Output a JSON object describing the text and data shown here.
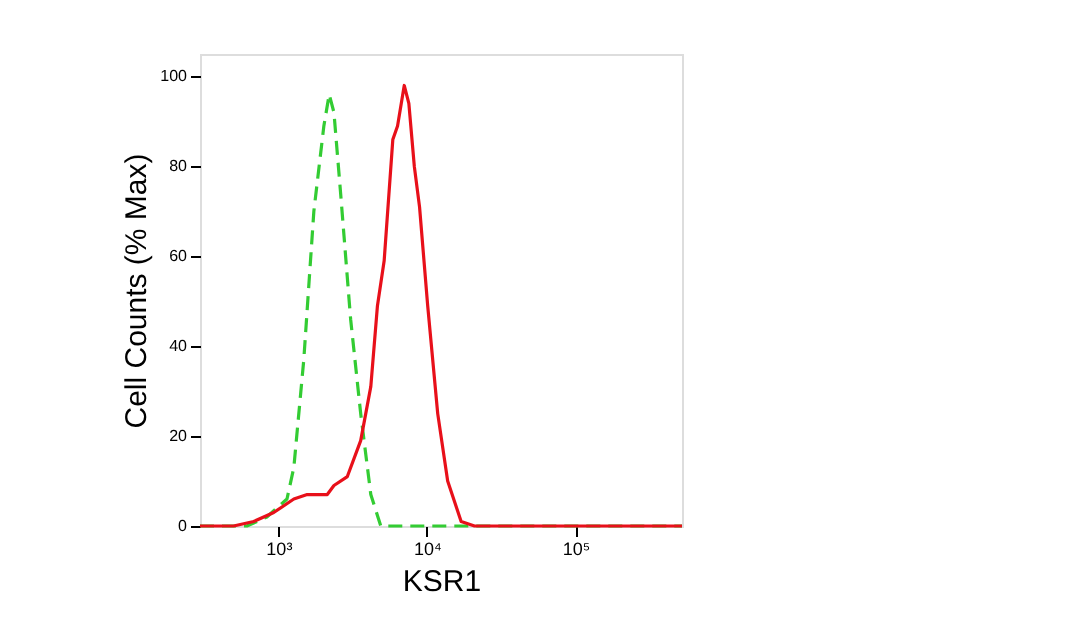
{
  "chart_data": {
    "type": "line",
    "xlabel": "KSR1",
    "ylabel": "Cell Counts (% Max)",
    "log": "x",
    "grid": false,
    "marker": "none",
    "xlim": [
      297,
      520000
    ],
    "ylim": [
      0,
      105
    ],
    "xticks": [
      {
        "value": 1000,
        "label": "10³"
      },
      {
        "value": 10000,
        "label": "10⁴"
      },
      {
        "value": 100000,
        "label": "10⁵"
      }
    ],
    "yticks": [
      0,
      20,
      40,
      60,
      80,
      100
    ],
    "series": [
      {
        "color": "#33cc33",
        "line_style": "dashed",
        "x": [
          297,
          614,
          837,
          1143,
          1271,
          1483,
          1733,
          2024,
          2198,
          2366,
          2624,
          3064,
          3581,
          4188,
          4887,
          20890,
          520000
        ],
        "values": [
          0,
          0,
          2,
          6,
          13,
          37,
          70,
          89,
          96,
          92,
          74,
          46,
          25,
          7,
          0,
          0,
          0
        ]
      },
      {
        "color": "#e8101a",
        "line_style": "solid",
        "x": [
          297,
          500,
          682,
          931,
          1271,
          1563,
          2134,
          2366,
          2912,
          3581,
          4188,
          4643,
          5151,
          5892,
          6339,
          7031,
          7551,
          8219,
          8913,
          10110,
          11810,
          13780,
          16980,
          20890,
          520000
        ],
        "values": [
          0,
          0,
          1,
          3,
          6,
          7,
          7,
          9,
          11,
          19,
          31,
          49,
          59,
          86,
          89,
          98,
          94,
          80,
          71,
          49,
          25,
          10,
          1,
          0,
          0
        ]
      }
    ]
  }
}
